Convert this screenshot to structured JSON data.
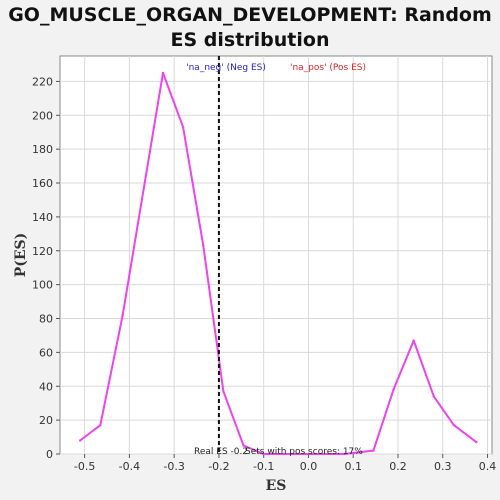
{
  "chart_data": {
    "type": "line",
    "title_line1": "GO_MUSCLE_ORGAN_DEVELOPMENT: Random",
    "title_line2": "ES distribution",
    "xlabel": "ES",
    "ylabel": "P(ES)",
    "xlim": [
      -0.555,
      0.41
    ],
    "ylim": [
      0,
      235
    ],
    "xticks": [
      -0.5,
      -0.4,
      -0.3,
      -0.2,
      -0.1,
      0.0,
      0.1,
      0.2,
      0.3,
      0.4
    ],
    "xtick_labels": [
      "-0.5",
      "-0.4",
      "-0.3",
      "-0.2",
      "-0.1",
      "0.0",
      "0.1",
      "0.2",
      "0.3",
      "0.4"
    ],
    "yticks": [
      0,
      20,
      40,
      60,
      80,
      100,
      120,
      140,
      160,
      180,
      200,
      220
    ],
    "ytick_labels": [
      "0",
      "20",
      "40",
      "60",
      "80",
      "100",
      "120",
      "140",
      "160",
      "180",
      "200",
      "220"
    ],
    "grid": true,
    "series": [
      {
        "color": "#ee44ee",
        "x": [
          -0.51,
          -0.465,
          -0.415,
          -0.325,
          -0.28,
          -0.235,
          -0.19,
          -0.145,
          -0.1,
          -0.055,
          -0.01,
          0.035,
          0.08,
          0.145,
          0.19,
          0.235,
          0.28,
          0.325,
          0.375
        ],
        "y": [
          8,
          17,
          82,
          225,
          193,
          123,
          37,
          5,
          0,
          0,
          0,
          0,
          0,
          2,
          38,
          67,
          34,
          17,
          7
        ]
      }
    ],
    "vline": {
      "x": -0.2,
      "color": "#111111",
      "style": "dashed"
    },
    "legend": [
      {
        "label": "'na_neg' (Neg ES)",
        "color": "#2222cc"
      },
      {
        "label": "'na_pos' (Pos ES)",
        "color": "#dd2222"
      }
    ],
    "annotations": {
      "real_es": "Real ES -0.2",
      "pos_scores": "Sets with pos scores: 17%"
    }
  }
}
